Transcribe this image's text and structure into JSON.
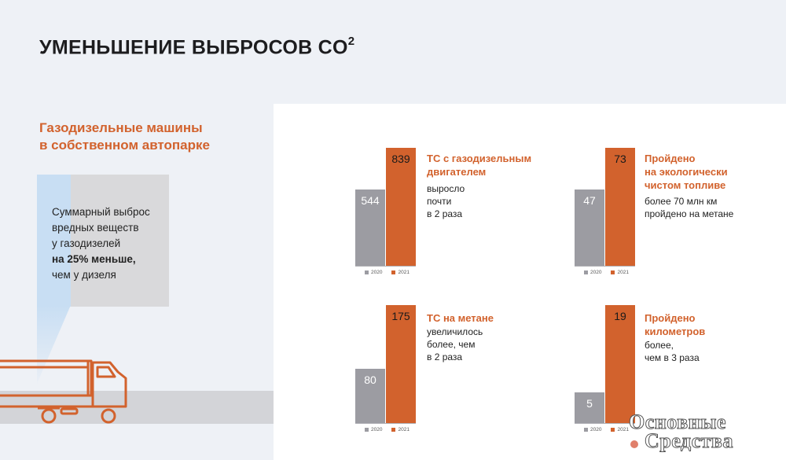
{
  "title": "УМЕНЬШЕНИЕ ВЫБРОСОВ CO",
  "title_sup": "2",
  "left": {
    "subtitle": "Газодизельные машины\nв собственном автопарке",
    "callout": {
      "line1": "Суммарный выброс",
      "line2": "вредных веществ",
      "line3": "у газодизелей",
      "line4_bold": "на 25% меньше,",
      "line5": "чем у дизеля"
    }
  },
  "colors": {
    "accent": "#d2622d",
    "bar_2020": "#9c9ca2",
    "bar_2021": "#d2622d"
  },
  "watermark": {
    "line1": "Основные",
    "line2": "Средства"
  },
  "chart_data": [
    {
      "type": "bar",
      "categories": [
        "2020",
        "2021"
      ],
      "values": [
        544,
        839
      ],
      "title": "ТС с газодизельным\nдвигателем",
      "description": "выросло\nпочти\nв 2 раза"
    },
    {
      "type": "bar",
      "categories": [
        "2020",
        "2021"
      ],
      "values": [
        47,
        73
      ],
      "title": "Пройдено\nна экологически\nчистом топливе",
      "description": "более 70 млн км\nпройдено на метане"
    },
    {
      "type": "bar",
      "categories": [
        "2020",
        "2021"
      ],
      "values": [
        80,
        175
      ],
      "title": "ТС на метане",
      "description": "увеличилось\nболее, чем\nв 2 раза"
    },
    {
      "type": "bar",
      "categories": [
        "2020",
        "2021"
      ],
      "values": [
        5,
        19
      ],
      "title": "Пройдено\nкилометров",
      "description": "более,\nчем в 3 раза"
    }
  ]
}
